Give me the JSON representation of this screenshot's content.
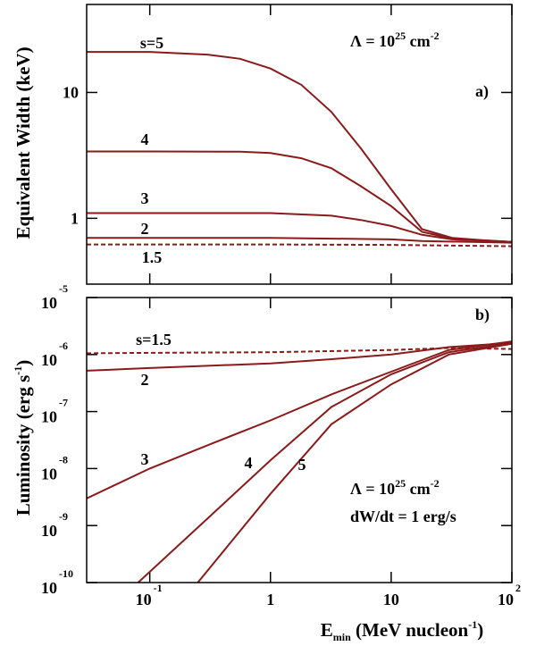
{
  "chart_data": [
    {
      "type": "line",
      "log_x": true,
      "log_y": true,
      "ylabel": "Equivalent Width (keV)",
      "panel_label": "a)",
      "annotation": [
        "Λ = 10",
        "25",
        " cm",
        "-2"
      ],
      "xlim": [
        0.03,
        100
      ],
      "ylim": [
        0.3,
        50
      ],
      "xticks": [
        0.1,
        1,
        10,
        100
      ],
      "yticks": [
        1,
        10
      ],
      "series": [
        {
          "name": "s=5",
          "color": "#8b1a1a",
          "linestyle": "solid",
          "x": [
            0.03,
            0.1,
            0.3,
            0.56,
            1,
            1.8,
            3.2,
            5.6,
            10,
            18,
            32,
            56,
            100
          ],
          "values": [
            21,
            21,
            20,
            18.5,
            15.5,
            11.5,
            7,
            3.6,
            1.7,
            0.82,
            0.7,
            0.67,
            0.65
          ]
        },
        {
          "name": "4",
          "color": "#8b1a1a",
          "linestyle": "solid",
          "x": [
            0.03,
            0.1,
            0.56,
            1,
            1.8,
            3.2,
            5.6,
            10,
            18,
            32,
            100
          ],
          "values": [
            3.4,
            3.4,
            3.38,
            3.3,
            3.0,
            2.5,
            1.8,
            1.25,
            0.78,
            0.69,
            0.65
          ]
        },
        {
          "name": "3",
          "color": "#8b1a1a",
          "linestyle": "solid",
          "x": [
            0.03,
            0.1,
            1,
            3.2,
            5.6,
            10,
            18,
            32,
            100
          ],
          "values": [
            1.1,
            1.1,
            1.1,
            1.05,
            0.97,
            0.87,
            0.74,
            0.68,
            0.65
          ]
        },
        {
          "name": "2",
          "color": "#8b1a1a",
          "linestyle": "solid",
          "x": [
            0.03,
            1,
            10,
            18,
            100
          ],
          "values": [
            0.7,
            0.7,
            0.68,
            0.66,
            0.64
          ]
        },
        {
          "name": "1.5",
          "color": "#8b1a1a",
          "linestyle": "dashed",
          "x": [
            0.03,
            1,
            10,
            100
          ],
          "values": [
            0.62,
            0.62,
            0.615,
            0.6
          ]
        }
      ]
    },
    {
      "type": "line",
      "log_x": true,
      "log_y": true,
      "ylabel": [
        "Luminosity (erg s",
        "-1",
        ")"
      ],
      "panel_label": "b)",
      "annotation": [
        "Λ = 10",
        "25",
        " cm",
        "-2"
      ],
      "annotation2": "dW/dt = 1 erg/s",
      "xlabel": [
        "E",
        "min",
        " (MeV nucleon",
        "-1",
        ")"
      ],
      "xlim": [
        0.03,
        100
      ],
      "ylim": [
        1e-10,
        1e-05
      ],
      "xticks": [
        {
          "value": 0.1,
          "label": "10",
          "exponent": "-1"
        },
        {
          "value": 1,
          "label": "1"
        },
        {
          "value": 10,
          "label": "10"
        },
        {
          "value": 100,
          "label": "10",
          "exponent": "2"
        }
      ],
      "yticks": [
        {
          "value": 1e-10,
          "label": "10",
          "exponent": "-10"
        },
        {
          "value": 1e-09,
          "label": "10",
          "exponent": "-9"
        },
        {
          "value": 1e-08,
          "label": "10",
          "exponent": "-8"
        },
        {
          "value": 1e-07,
          "label": "10",
          "exponent": "-7"
        },
        {
          "value": 1e-06,
          "label": "10",
          "exponent": "-6"
        },
        {
          "value": 1e-05,
          "label": "10",
          "exponent": "-5"
        }
      ],
      "series": [
        {
          "name": "s=1.5",
          "color": "#8b1a1a",
          "linestyle": "dashed",
          "x": [
            0.03,
            0.1,
            1,
            10,
            30,
            100
          ],
          "values": [
            1.05e-06,
            1.07e-06,
            1.1e-06,
            1.2e-06,
            1.3e-06,
            1.25e-06
          ]
        },
        {
          "name": "2",
          "color": "#8b1a1a",
          "linestyle": "solid",
          "x": [
            0.03,
            0.1,
            1,
            3.2,
            10,
            30,
            100
          ],
          "values": [
            5.2e-07,
            5.8e-07,
            7e-07,
            8.3e-07,
            1e-06,
            1.35e-06,
            1.6e-06
          ]
        },
        {
          "name": "3",
          "color": "#8b1a1a",
          "linestyle": "solid",
          "x": [
            0.03,
            0.1,
            0.32,
            1,
            3.2,
            10,
            30,
            100
          ],
          "values": [
            3e-09,
            1e-08,
            2.7e-08,
            7e-08,
            2e-07,
            5e-07,
            1.2e-06,
            1.7e-06
          ]
        },
        {
          "name": "4",
          "color": "#8b1a1a",
          "linestyle": "solid",
          "x": [
            0.08,
            0.32,
            1,
            3.2,
            10,
            30,
            100
          ],
          "values": [
            1e-10,
            1.5e-09,
            1.4e-08,
            1.2e-07,
            4.5e-07,
            1.1e-06,
            1.6e-06
          ]
        },
        {
          "name": "5",
          "color": "#8b1a1a",
          "linestyle": "solid",
          "x": [
            0.25,
            1,
            3.2,
            10,
            30,
            100
          ],
          "values": [
            1e-10,
            3.6e-09,
            6e-08,
            3e-07,
            1e-06,
            1.55e-06
          ]
        }
      ]
    }
  ]
}
